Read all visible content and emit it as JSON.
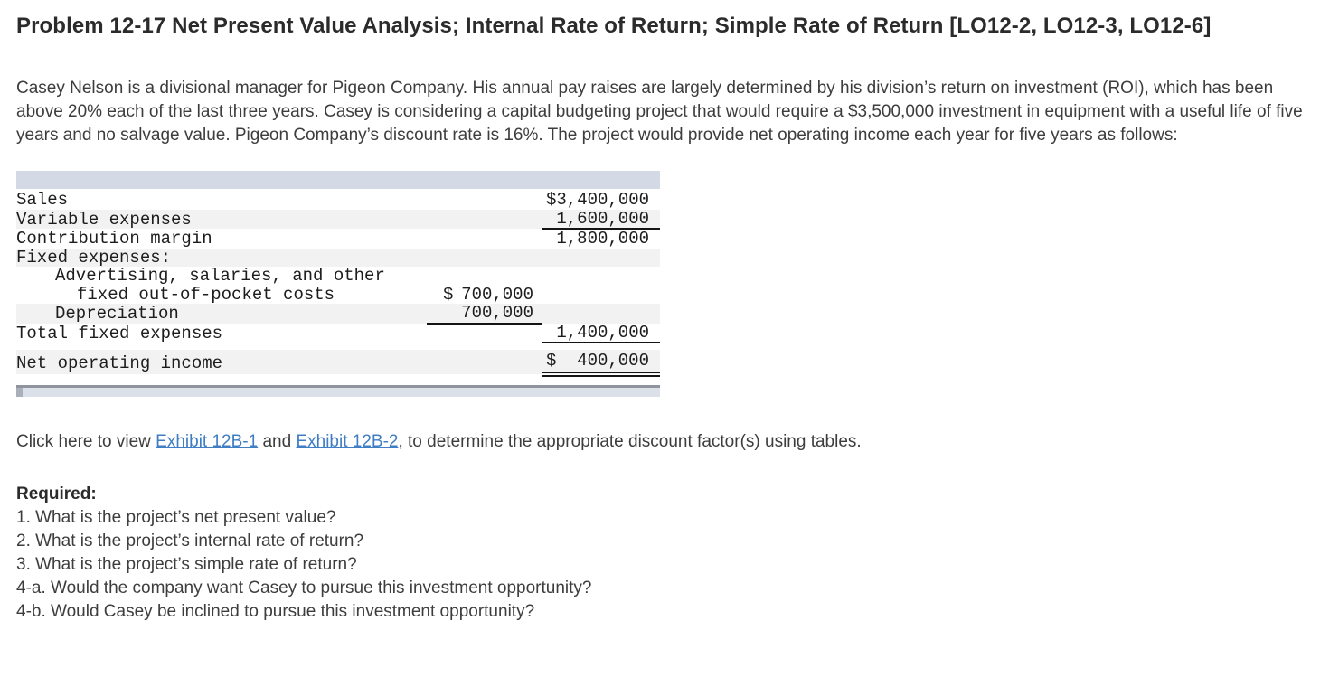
{
  "title": "Problem 12-17 Net Present Value Analysis; Internal Rate of Return; Simple Rate of Return [LO12-2, LO12-3, LO12-6]",
  "intro": "Casey Nelson is a divisional manager for Pigeon Company. His annual pay raises are largely determined by his division’s return on investment (ROI), which has been above 20% each of the last three years. Casey is considering a capital budgeting project that would require a $3,500,000 investment in equipment with a useful life of five years and no salvage value. Pigeon Company’s discount rate is 16%. The project would provide net operating income each year for five years as follows:",
  "income_statement": {
    "rows": [
      {
        "label": "Sales",
        "indent": 0,
        "cur3": "$",
        "amt3": "3,400,000",
        "stripe": false
      },
      {
        "label": "Variable expenses",
        "indent": 0,
        "amt3": "1,600,000",
        "rule3": "single",
        "stripe": true
      },
      {
        "label": "Contribution margin",
        "indent": 0,
        "amt3": "1,800,000",
        "stripe": false
      },
      {
        "label": "Fixed expenses:",
        "indent": 0,
        "stripe": true
      },
      {
        "label": "Advertising, salaries, and other",
        "indent": 1,
        "stripe": false
      },
      {
        "label": "fixed out-of-pocket costs",
        "indent": 2,
        "cur2": "$",
        "amt2": "700,000",
        "stripe": false
      },
      {
        "label": "Depreciation",
        "indent": 1,
        "amt2": "700,000",
        "rule2": "single",
        "stripe": true
      },
      {
        "label": "Total fixed expenses",
        "indent": 0,
        "amt3": "1,400,000",
        "rule3": "single",
        "stripe": false
      },
      {
        "spacer": true
      },
      {
        "label": "Net operating income",
        "indent": 0,
        "cur3": "$",
        "amt3": "400,000",
        "rule3": "double",
        "stripe": true,
        "tall": true
      }
    ]
  },
  "exhibit_line": {
    "prefix": "Click here to view ",
    "link1": "Exhibit 12B-1",
    "middle": " and ",
    "link2": "Exhibit 12B-2",
    "suffix": ", to determine the appropriate discount factor(s) using tables."
  },
  "required": {
    "heading": "Required:",
    "items": [
      "1. What is the project’s net present value?",
      "2. What is the project’s internal rate of return?",
      "3. What is the project’s simple rate of return?",
      "4-a. Would the company want Casey to pursue this investment opportunity?",
      "4-b. Would Casey be inclined to pursue this investment opportunity?"
    ]
  },
  "colors": {
    "link": "#3f7dc4",
    "table_header_bg": "#d4dae5",
    "stripe_bg": "#f2f2f3",
    "scroll_track": "#dce0e9",
    "scroll_border": "#8f949e",
    "scroll_thumb": "#aab0ba"
  }
}
